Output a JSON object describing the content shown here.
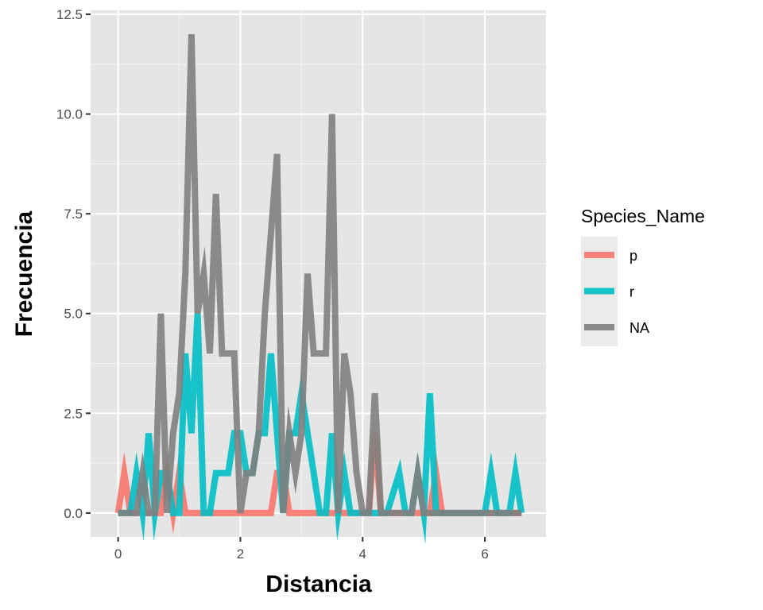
{
  "chart_data": {
    "type": "line",
    "title": "",
    "xlabel": "Distancia",
    "ylabel": "Frecuencia",
    "xlim": [
      -0.45,
      7.0
    ],
    "ylim": [
      -0.6,
      12.6
    ],
    "x_ticks": [
      0,
      2,
      4,
      6
    ],
    "x_tick_labels": [
      "0",
      "2",
      "4",
      "6"
    ],
    "y_ticks": [
      0,
      2.5,
      5,
      7.5,
      10,
      12.5
    ],
    "y_tick_labels": [
      "0.0",
      "2.5",
      "5.0",
      "7.5",
      "10.0",
      "12.5"
    ],
    "grid": true,
    "panel_background": "#e5e5e5",
    "grid_color": "#ffffff",
    "legend": {
      "title": "Species_Name",
      "placement": "right",
      "entries": [
        "p",
        "r",
        "NA"
      ]
    },
    "series": [
      {
        "name": "p",
        "color": "#f8766d",
        "points": [
          [
            0.0,
            0
          ],
          [
            0.1,
            1
          ],
          [
            0.2,
            0
          ],
          [
            0.7,
            0
          ],
          [
            0.8,
            1
          ],
          [
            0.9,
            0
          ],
          [
            1.0,
            1
          ],
          [
            1.1,
            0
          ],
          [
            2.5,
            0
          ],
          [
            2.6,
            1
          ],
          [
            2.7,
            1
          ],
          [
            2.8,
            0
          ],
          [
            4.1,
            0
          ],
          [
            4.2,
            2
          ],
          [
            4.3,
            0
          ],
          [
            5.1,
            0
          ],
          [
            5.2,
            1
          ],
          [
            5.3,
            0
          ],
          [
            6.6,
            0
          ]
        ]
      },
      {
        "name": "r",
        "color": "#00bfc4",
        "points": [
          [
            0.0,
            0
          ],
          [
            0.2,
            0
          ],
          [
            0.3,
            1
          ],
          [
            0.4,
            0
          ],
          [
            0.5,
            2
          ],
          [
            0.6,
            0
          ],
          [
            0.7,
            1
          ],
          [
            0.8,
            1
          ],
          [
            0.9,
            0
          ],
          [
            1.0,
            0
          ],
          [
            1.1,
            4
          ],
          [
            1.2,
            2
          ],
          [
            1.3,
            5
          ],
          [
            1.4,
            0
          ],
          [
            1.5,
            0
          ],
          [
            1.6,
            1
          ],
          [
            1.8,
            1
          ],
          [
            1.9,
            2
          ],
          [
            2.0,
            2
          ],
          [
            2.1,
            1
          ],
          [
            2.2,
            1
          ],
          [
            2.3,
            2
          ],
          [
            2.4,
            2
          ],
          [
            2.5,
            4
          ],
          [
            2.6,
            2
          ],
          [
            2.7,
            0
          ],
          [
            2.8,
            2
          ],
          [
            2.9,
            2
          ],
          [
            3.0,
            3
          ],
          [
            3.2,
            1
          ],
          [
            3.3,
            0
          ],
          [
            3.4,
            0
          ],
          [
            3.5,
            2
          ],
          [
            3.6,
            0
          ],
          [
            3.7,
            1
          ],
          [
            3.8,
            0
          ],
          [
            4.4,
            0
          ],
          [
            4.6,
            1
          ],
          [
            4.7,
            0
          ],
          [
            4.8,
            0
          ],
          [
            4.9,
            1
          ],
          [
            5.0,
            0
          ],
          [
            5.1,
            3
          ],
          [
            5.2,
            0
          ],
          [
            6.0,
            0
          ],
          [
            6.1,
            1
          ],
          [
            6.2,
            0
          ],
          [
            6.4,
            0
          ],
          [
            6.5,
            1
          ],
          [
            6.6,
            0
          ]
        ]
      },
      {
        "name": "NA",
        "color": "#7f7f7f",
        "points": [
          [
            0.0,
            0
          ],
          [
            0.3,
            0
          ],
          [
            0.4,
            1
          ],
          [
            0.5,
            0
          ],
          [
            0.6,
            0
          ],
          [
            0.7,
            5
          ],
          [
            0.8,
            0
          ],
          [
            0.9,
            2
          ],
          [
            1.0,
            3
          ],
          [
            1.1,
            6
          ],
          [
            1.2,
            12
          ],
          [
            1.3,
            5
          ],
          [
            1.4,
            6
          ],
          [
            1.5,
            4
          ],
          [
            1.6,
            8
          ],
          [
            1.7,
            4
          ],
          [
            1.9,
            4
          ],
          [
            2.0,
            0
          ],
          [
            2.1,
            1
          ],
          [
            2.2,
            1
          ],
          [
            2.3,
            2
          ],
          [
            2.4,
            5
          ],
          [
            2.5,
            7
          ],
          [
            2.6,
            9
          ],
          [
            2.7,
            0
          ],
          [
            2.8,
            2
          ],
          [
            2.9,
            1
          ],
          [
            3.0,
            2
          ],
          [
            3.1,
            6
          ],
          [
            3.2,
            4
          ],
          [
            3.4,
            4
          ],
          [
            3.5,
            10
          ],
          [
            3.6,
            0
          ],
          [
            3.7,
            4
          ],
          [
            3.8,
            3
          ],
          [
            3.9,
            1
          ],
          [
            4.0,
            0
          ],
          [
            4.1,
            0
          ],
          [
            4.2,
            3
          ],
          [
            4.3,
            0
          ],
          [
            4.8,
            0
          ],
          [
            4.9,
            1
          ],
          [
            5.0,
            0
          ],
          [
            6.6,
            0
          ]
        ]
      }
    ]
  }
}
